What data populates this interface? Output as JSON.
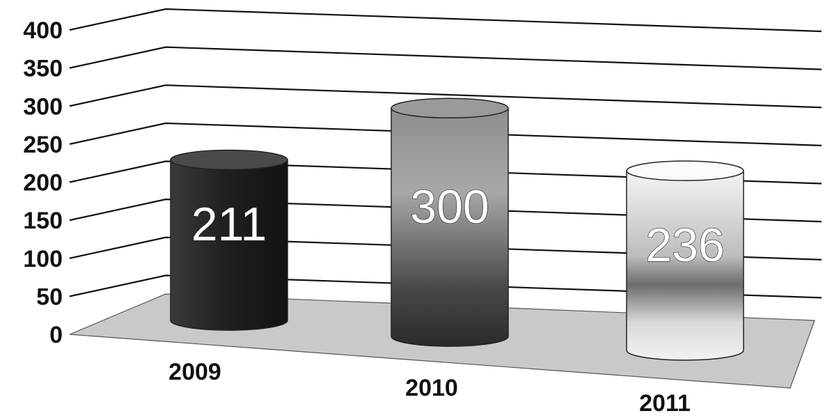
{
  "chart_data": {
    "type": "bar",
    "categories": [
      "2009",
      "2010",
      "2011"
    ],
    "values": [
      211,
      300,
      236
    ],
    "data_labels": [
      "211",
      "300",
      "236"
    ],
    "yticks": [
      "0",
      "50",
      "100",
      "150",
      "200",
      "250",
      "300",
      "350",
      "400"
    ],
    "ylim": [
      0,
      400
    ],
    "title": "",
    "xlabel": "",
    "ylabel": "",
    "grid": true,
    "style": "3d-cylinder",
    "colors": [
      "#2e2e2e",
      "#6a6a6a",
      "#e8e8e8"
    ]
  }
}
